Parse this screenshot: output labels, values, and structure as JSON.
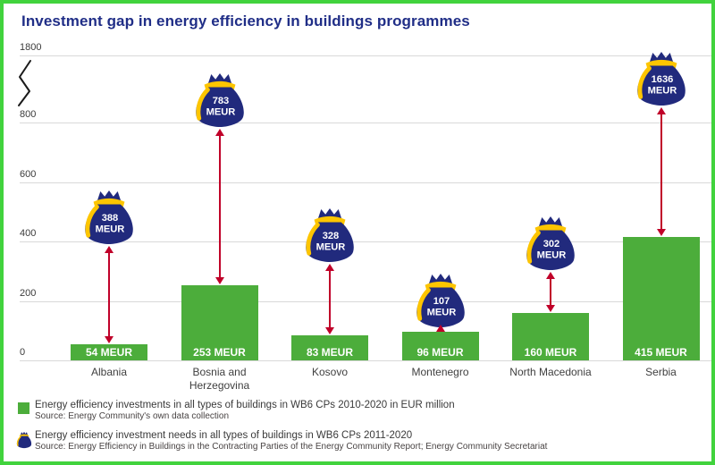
{
  "title": "Investment gap in energy efficiency in buildings programmes",
  "colors": {
    "border_green": "#41d33d",
    "title_navy": "#202e87",
    "bar_green": "#4cad3b",
    "bag_navy": "#212a7d",
    "bag_yellow": "#fdc500",
    "arrow_red": "#c00029",
    "gridline_gray": "#d9d9d9"
  },
  "y_axis": {
    "ticks": [
      0,
      200,
      400,
      600,
      800,
      1800
    ],
    "has_break": true
  },
  "chart_data": {
    "type": "bar",
    "title": "Investment gap in energy efficiency in buildings programmes",
    "categories": [
      "Albania",
      "Bosnia and Herzegovina",
      "Kosovo",
      "Montenegro",
      "North Macedonia",
      "Serbia"
    ],
    "series": [
      {
        "name": "Energy efficiency investments in all types of buildings in WB6 CPs 2010-2020 in EUR million",
        "marker": "green-bar",
        "values": [
          54,
          253,
          83,
          96,
          160,
          415
        ],
        "unit": "MEUR"
      },
      {
        "name": "Energy efficiency investment needs in all types of buildings in WB6 CPs 2011-2020",
        "marker": "money-bag",
        "values": [
          388,
          783,
          328,
          107,
          302,
          1636
        ],
        "unit": "MEUR"
      }
    ],
    "ylim": [
      0,
      1800
    ],
    "axis_break_between": [
      800,
      1800
    ],
    "grid": true,
    "legend_position": "bottom",
    "annotations": "red double-headed arrows show the gap between investments (bars) and needs (money bags)"
  },
  "legend": {
    "items": [
      {
        "label": "Energy efficiency investments in all types of buildings in WB6 CPs 2010-2020 in EUR million",
        "source": "Source: Energy Community's own data collection"
      },
      {
        "label": "Energy efficiency investment needs in all types of buildings in WB6 CPs 2011-2020",
        "source": "Source: Energy Efficiency in Buildings in the Contracting Parties of the Energy Community Report; Energy Community Secretariat"
      }
    ]
  }
}
